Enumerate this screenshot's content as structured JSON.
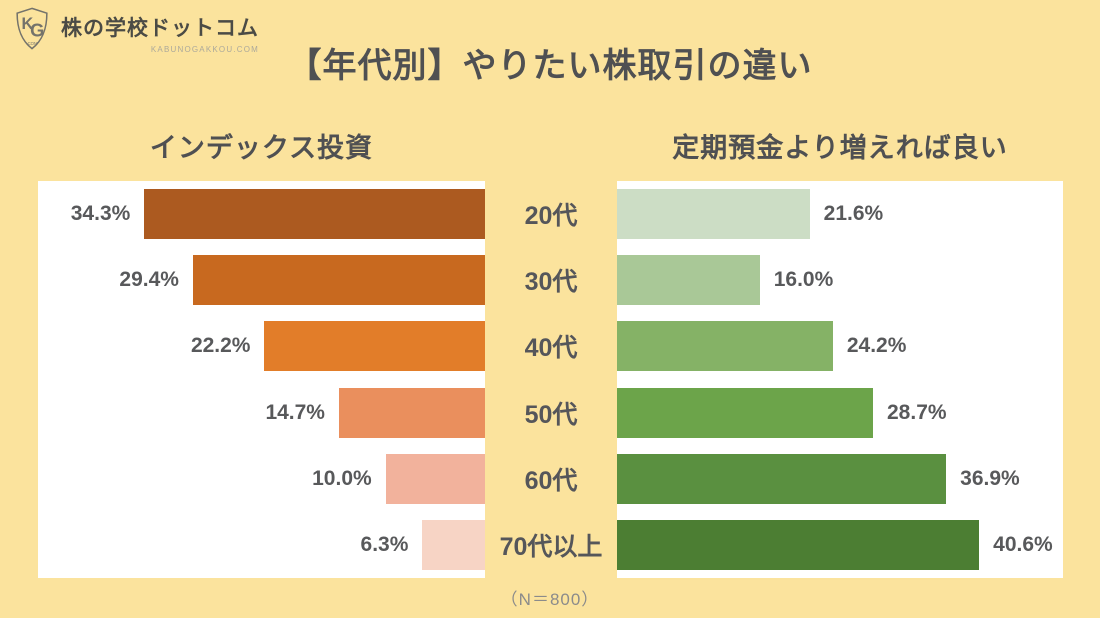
{
  "page": {
    "title": "【年代別】やりたい株取引の違い",
    "footnote": "（N＝800）"
  },
  "logo": {
    "name": "株の学校ドットコム",
    "domain": "KABUNOGAKKOU.COM",
    "monogram_k": "K",
    "monogram_g": "G",
    "monogram_com": ".COM"
  },
  "colors": {
    "background": "#FBE39D",
    "panel_background": "#FFFFFF",
    "title_text": "#4F5052",
    "value_text": "#58595B",
    "footnote_text": "#8B8B8B"
  },
  "chart_data": {
    "type": "bar",
    "orientation": "horizontal-butterfly",
    "title": "【年代別】やりたい株取引の違い",
    "categories": [
      "20代",
      "30代",
      "40代",
      "50代",
      "60代",
      "70代以上"
    ],
    "series": [
      {
        "name": "インデックス投資",
        "side": "left",
        "values": [
          34.3,
          29.4,
          22.2,
          14.7,
          10.0,
          6.3
        ],
        "labels": [
          "34.3%",
          "29.4%",
          "22.2%",
          "14.7%",
          "10.0%",
          "6.3%"
        ],
        "axis_max": 45,
        "bar_colors": [
          "#AC5A20",
          "#C8691F",
          "#E27D29",
          "#EA8F5D",
          "#F2B29C",
          "#F7D4C5"
        ]
      },
      {
        "name": "定期預金より増えれば良い",
        "side": "right",
        "values": [
          21.6,
          16.0,
          24.2,
          28.7,
          36.9,
          40.6
        ],
        "labels": [
          "21.6%",
          "16.0%",
          "24.2%",
          "28.7%",
          "36.9%",
          "40.6%"
        ],
        "axis_max": 50,
        "bar_colors": [
          "#CCDDC5",
          "#A9C897",
          "#85B266",
          "#6CA44A",
          "#5A9040",
          "#4C7E33"
        ]
      }
    ],
    "sample_note": "（N＝800）",
    "grid": false,
    "legend": false
  }
}
